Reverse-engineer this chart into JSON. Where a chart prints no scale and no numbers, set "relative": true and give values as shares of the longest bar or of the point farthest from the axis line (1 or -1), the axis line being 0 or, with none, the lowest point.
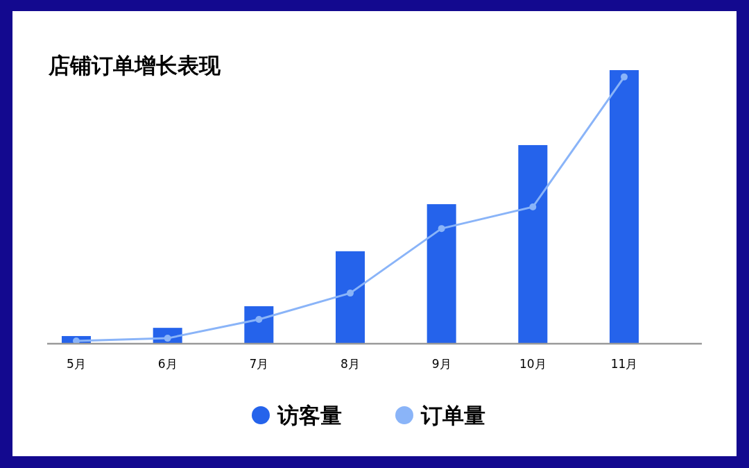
{
  "chart_data": {
    "type": "bar",
    "title": "店铺订单增长表现",
    "categories": [
      "5月",
      "6月",
      "7月",
      "8月",
      "9月",
      "10月",
      "11月"
    ],
    "relative": true,
    "grid": false,
    "legend": "bottom",
    "marker": "circle",
    "series": [
      {
        "name": "访客量",
        "color": "#2563eb",
        "values": [
          0.028,
          0.058,
          0.137,
          0.338,
          0.51,
          0.726,
          1
        ]
      },
      {
        "name": "订单量",
        "type": "line",
        "color": "#8ab4f8",
        "values": [
          0.01,
          0.02,
          0.089,
          0.185,
          0.421,
          0.5,
          0.975
        ]
      }
    ]
  }
}
